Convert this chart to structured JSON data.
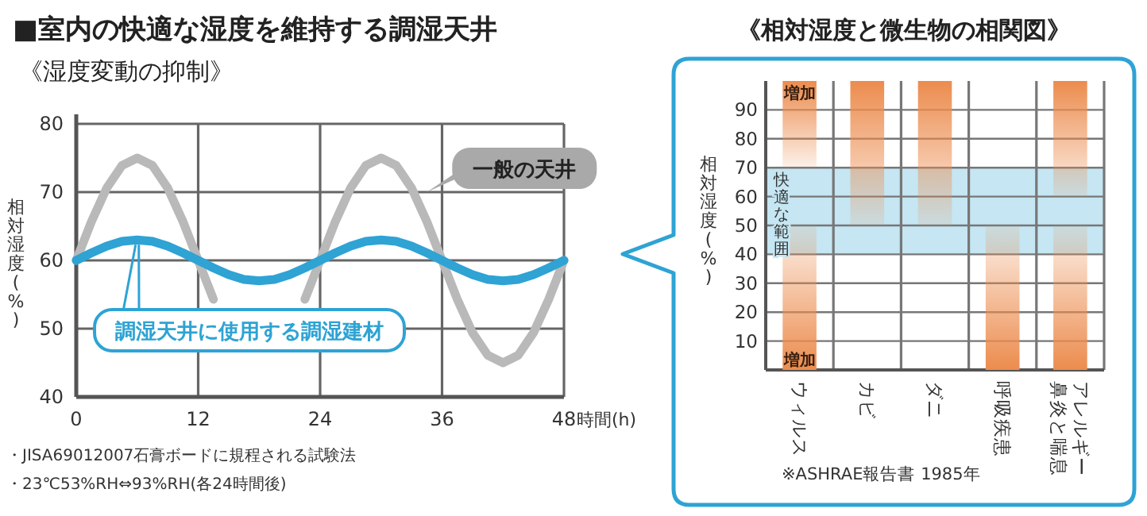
{
  "chart_data": [
    {
      "type": "line",
      "title": "■室内の快適な湿度を維持する調湿天井",
      "subtitle": "《湿度変動の抑制》",
      "ylabel": "相対湿度(%)",
      "xlabel": "時間(h)",
      "x": [
        0,
        1.5,
        3,
        4.5,
        6,
        7.5,
        9,
        10.5,
        12,
        13.5,
        15,
        16.5,
        18,
        19.5,
        21,
        22.5,
        24,
        25.5,
        27,
        28.5,
        30,
        31.5,
        33,
        34.5,
        36,
        37.5,
        39,
        40.5,
        42,
        43.5,
        45,
        46.5,
        48
      ],
      "series": [
        {
          "name": "一般の天井",
          "color": "#b9b9b9",
          "values": [
            60,
            65.7,
            70.6,
            73.9,
            75,
            73.9,
            70.6,
            65.7,
            60,
            54.3,
            null,
            null,
            null,
            null,
            null,
            54.3,
            60,
            65.7,
            70.6,
            73.9,
            75,
            73.9,
            70.6,
            65.7,
            60,
            54.3,
            49.4,
            46.1,
            45,
            46.1,
            49.4,
            54.3,
            60
          ]
        },
        {
          "name": "調湿天井に使用する調湿建材",
          "color": "#2ea3d4",
          "values": [
            60,
            61.1,
            62.1,
            62.8,
            63,
            62.8,
            62.1,
            61.1,
            60,
            58.9,
            57.9,
            57.2,
            57,
            57.2,
            57.9,
            58.9,
            60,
            61.1,
            62.1,
            62.8,
            63,
            62.8,
            62.1,
            61.1,
            60,
            58.9,
            57.9,
            57.2,
            57,
            57.2,
            57.9,
            58.9,
            60
          ]
        }
      ],
      "xlim": [
        0,
        48
      ],
      "xticks": [
        0,
        12,
        24,
        36,
        48
      ],
      "ylim": [
        40,
        80
      ],
      "yticks": [
        40,
        50,
        60,
        70,
        80
      ],
      "grid": true,
      "annotations": [
        "・JISA69012007石膏ボードに規程される試験法",
        "・23℃53%RH⇔93%RH(各24時間後)"
      ]
    },
    {
      "type": "bar",
      "title": "《相対湿度と微生物の相関図》",
      "ylabel": "相対湿度(%)",
      "categories": [
        "ウィルス",
        "カビ",
        "ダニ",
        "呼吸疾患",
        "アレルギー鼻炎と喘息"
      ],
      "series": [
        {
          "color": "#ec8c4e",
          "base": [
            70,
            50,
            50,
            null,
            60
          ],
          "values": [
            30,
            50,
            50,
            null,
            40
          ]
        },
        {
          "color": "#ec8c4e",
          "base": [
            0,
            null,
            null,
            0,
            0
          ],
          "values": [
            50,
            null,
            null,
            50,
            50
          ]
        }
      ],
      "ylim": [
        0,
        100
      ],
      "yticks": [
        10,
        20,
        30,
        40,
        50,
        60,
        70,
        80,
        90
      ],
      "grid": true,
      "bands": [
        {
          "axis": "y",
          "from": 40,
          "to": 70,
          "label": "快適な範囲",
          "color": "#c5e6f2"
        }
      ],
      "annotations": [
        "増加",
        "増加",
        "※ASHRAE報告書 1985年"
      ]
    }
  ]
}
